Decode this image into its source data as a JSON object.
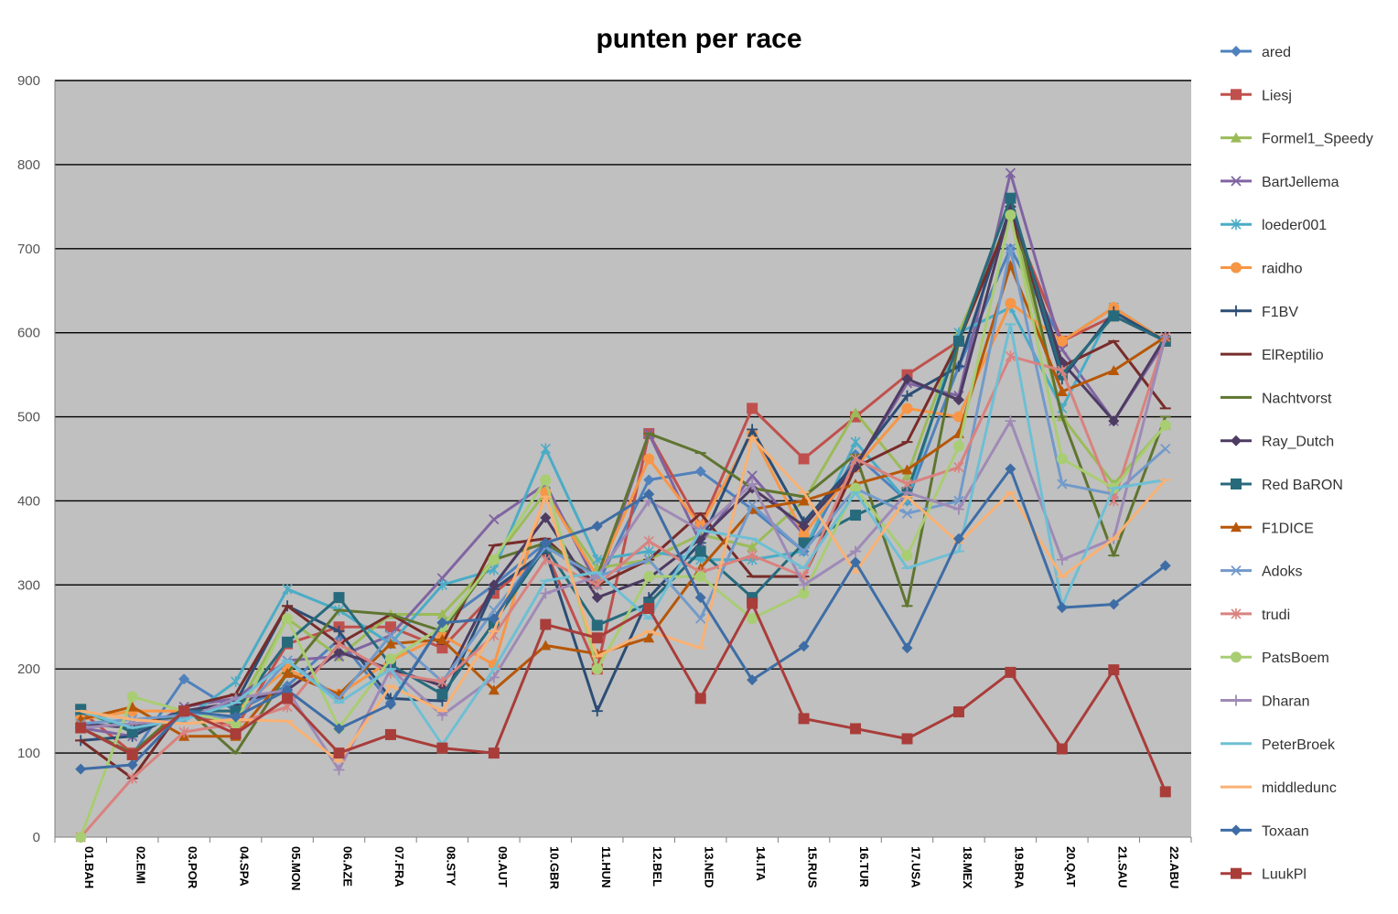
{
  "chart_data": {
    "type": "line",
    "title": "punten per race",
    "xlabel": "",
    "ylabel": "",
    "ylim": [
      0,
      900
    ],
    "yticks": [
      0,
      100,
      200,
      300,
      400,
      500,
      600,
      700,
      800,
      900
    ],
    "grid": true,
    "legend_position": "right",
    "plot_background": "#c0c0c0",
    "categories": [
      "01.BAH",
      "02.EMI",
      "03.POR",
      "04.SPA",
      "05.MON",
      "06.AZE",
      "07.FRA",
      "08.STY",
      "09.AUT",
      "10.GBR",
      "11.HUN",
      "12.BEL",
      "13.NED",
      "14.ITA",
      "15.RUS",
      "16.TUR",
      "17.USA",
      "18.MEX",
      "19.BRA",
      "20.QAT",
      "21.SAU",
      "22.ABU"
    ],
    "series": [
      {
        "name": "ared",
        "color": "#4f81bd",
        "marker": "diamond",
        "values": [
          130,
          98,
          188,
          150,
          180,
          235,
          160,
          255,
          300,
          350,
          300,
          425,
          435,
          390,
          340,
          455,
          400,
          560,
          700,
          590,
          630,
          590
        ]
      },
      {
        "name": "Liesj",
        "color": "#c0504d",
        "marker": "square",
        "values": [
          150,
          100,
          150,
          130,
          230,
          250,
          250,
          225,
          290,
          340,
          200,
          480,
          370,
          510,
          450,
          500,
          550,
          590,
          740,
          590,
          620,
          590
        ]
      },
      {
        "name": "Formel1_Speedy",
        "color": "#9bbb59",
        "marker": "triangle",
        "values": [
          150,
          125,
          150,
          150,
          260,
          215,
          265,
          265,
          330,
          410,
          320,
          330,
          360,
          345,
          400,
          505,
          430,
          600,
          740,
          500,
          420,
          490
        ]
      },
      {
        "name": "BartJellema",
        "color": "#8064a2",
        "marker": "x",
        "values": [
          130,
          120,
          155,
          165,
          210,
          215,
          240,
          308,
          378,
          420,
          300,
          480,
          350,
          430,
          360,
          440,
          540,
          525,
          790,
          580,
          495,
          590
        ]
      },
      {
        "name": "loeder001",
        "color": "#4bacc6",
        "marker": "star",
        "values": [
          150,
          130,
          140,
          185,
          295,
          270,
          230,
          300,
          318,
          462,
          330,
          340,
          330,
          330,
          340,
          470,
          400,
          600,
          630,
          510,
          630,
          590
        ]
      },
      {
        "name": "raidho",
        "color": "#f79646",
        "marker": "circle",
        "values": [
          140,
          150,
          150,
          150,
          200,
          170,
          210,
          240,
          205,
          410,
          310,
          450,
          370,
          480,
          360,
          440,
          510,
          500,
          635,
          590,
          630,
          590
        ]
      },
      {
        "name": "F1BV",
        "color": "#2c4d75",
        "marker": "plus",
        "values": [
          115,
          120,
          150,
          160,
          275,
          245,
          165,
          162,
          295,
          340,
          150,
          285,
          350,
          485,
          375,
          445,
          525,
          560,
          750,
          545,
          625,
          590
        ]
      },
      {
        "name": "ElReptilio",
        "color": "#772c2a",
        "marker": "dash",
        "values": [
          115,
          70,
          155,
          170,
          275,
          230,
          265,
          230,
          347,
          355,
          300,
          330,
          385,
          310,
          310,
          440,
          470,
          590,
          740,
          560,
          590,
          510
        ]
      },
      {
        "name": "Nachtvorst",
        "color": "#5f7530",
        "marker": "dash",
        "values": [
          130,
          100,
          155,
          100,
          195,
          270,
          265,
          245,
          330,
          350,
          310,
          480,
          457,
          415,
          405,
          455,
          275,
          590,
          760,
          500,
          335,
          500
        ]
      },
      {
        "name": "Ray_Dutch",
        "color": "#4d3b62",
        "marker": "diamond",
        "values": [
          135,
          130,
          150,
          160,
          175,
          220,
          200,
          180,
          300,
          380,
          285,
          308,
          355,
          415,
          370,
          440,
          545,
          520,
          750,
          565,
          495,
          595
        ]
      },
      {
        "name": "Red BaRON",
        "color": "#276a7c",
        "marker": "square",
        "values": [
          152,
          125,
          150,
          150,
          232,
          285,
          205,
          170,
          255,
          345,
          252,
          278,
          340,
          285,
          350,
          383,
          410,
          590,
          760,
          550,
          620,
          590
        ]
      },
      {
        "name": "F1DICE",
        "color": "#b65708",
        "marker": "triangle",
        "values": [
          140,
          155,
          120,
          120,
          195,
          170,
          230,
          235,
          175,
          228,
          218,
          237,
          320,
          390,
          400,
          420,
          437,
          480,
          680,
          530,
          555,
          595
        ]
      },
      {
        "name": "Adoks",
        "color": "#729aca",
        "marker": "x",
        "values": [
          135,
          140,
          145,
          140,
          210,
          165,
          240,
          185,
          270,
          345,
          310,
          330,
          260,
          395,
          340,
          415,
          385,
          400,
          700,
          420,
          408,
          462
        ]
      },
      {
        "name": "trudi",
        "color": "#d9827f",
        "marker": "star",
        "values": [
          0,
          70,
          125,
          135,
          155,
          230,
          195,
          185,
          240,
          330,
          300,
          352,
          315,
          335,
          310,
          450,
          420,
          440,
          572,
          555,
          400,
          595
        ]
      },
      {
        "name": "PatsBoem",
        "color": "#a9cd73",
        "marker": "circle",
        "values": [
          0,
          167,
          150,
          135,
          260,
          130,
          212,
          250,
          330,
          425,
          200,
          310,
          310,
          260,
          290,
          415,
          335,
          465,
          740,
          450,
          415,
          490
        ]
      },
      {
        "name": "Dharan",
        "color": "#9f8ab6",
        "marker": "plus",
        "values": [
          130,
          135,
          140,
          165,
          175,
          80,
          200,
          145,
          190,
          290,
          310,
          400,
          365,
          420,
          300,
          340,
          410,
          390,
          495,
          330,
          355,
          595
        ]
      },
      {
        "name": "PeterBroek",
        "color": "#6fbfd4",
        "marker": "dash",
        "values": [
          150,
          130,
          140,
          160,
          210,
          160,
          200,
          110,
          200,
          305,
          315,
          260,
          365,
          355,
          320,
          410,
          320,
          340,
          610,
          275,
          415,
          425
        ]
      },
      {
        "name": "middledunc",
        "color": "#f9b173",
        "marker": "dash",
        "values": [
          150,
          140,
          135,
          140,
          138,
          90,
          180,
          150,
          245,
          405,
          215,
          245,
          225,
          475,
          410,
          315,
          405,
          350,
          410,
          310,
          355,
          425
        ]
      },
      {
        "name": "Toxaan",
        "color": "#3e6da5",
        "marker": "diamond",
        "values": [
          81,
          86,
          150,
          143,
          175,
          129,
          158,
          255,
          260,
          350,
          370,
          408,
          285,
          187,
          227,
          327,
          225,
          355,
          438,
          273,
          277,
          323
        ]
      },
      {
        "name": "LuukPl",
        "color": "#a93d3a",
        "marker": "square",
        "values": [
          130,
          98,
          150,
          123,
          165,
          100,
          122,
          106,
          100,
          253,
          237,
          272,
          165,
          278,
          141,
          129,
          117,
          149,
          196,
          105,
          199,
          54
        ]
      }
    ]
  }
}
